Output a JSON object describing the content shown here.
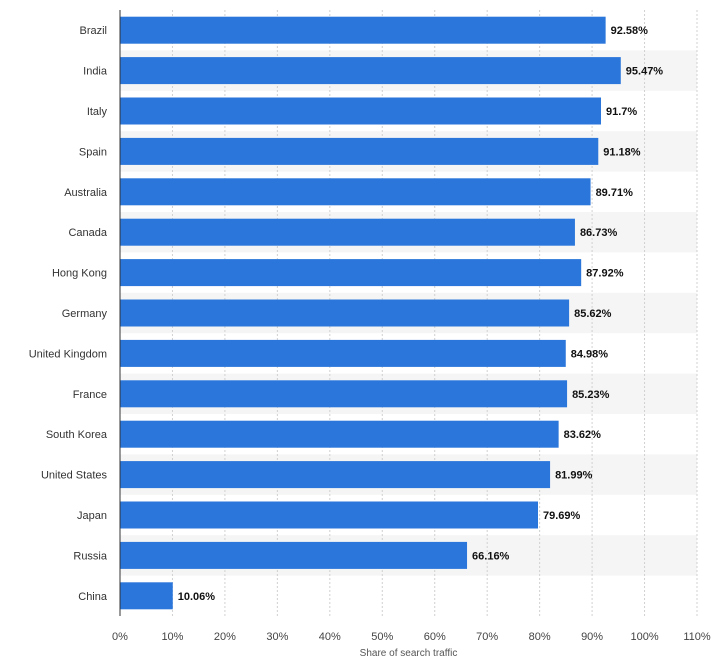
{
  "chart_data": {
    "type": "bar",
    "orientation": "horizontal",
    "categories": [
      "Brazil",
      "India",
      "Italy",
      "Spain",
      "Australia",
      "Canada",
      "Hong Kong",
      "Germany",
      "United Kingdom",
      "France",
      "South Korea",
      "United States",
      "Japan",
      "Russia",
      "China"
    ],
    "values": [
      92.58,
      95.47,
      91.7,
      91.18,
      89.71,
      86.73,
      87.92,
      85.62,
      84.98,
      85.23,
      83.62,
      81.99,
      79.69,
      66.16,
      10.06
    ],
    "value_labels": [
      "92.58%",
      "95.47%",
      "91.7%",
      "91.18%",
      "89.71%",
      "86.73%",
      "87.92%",
      "85.62%",
      "84.98%",
      "85.23%",
      "83.62%",
      "81.99%",
      "79.69%",
      "66.16%",
      "10.06%"
    ],
    "xlabel": "Share of search traffic",
    "ylabel": "",
    "xlim": [
      0,
      110
    ],
    "x_ticks": [
      0,
      10,
      20,
      30,
      40,
      50,
      60,
      70,
      80,
      90,
      100,
      110
    ],
    "x_tick_labels": [
      "0%",
      "10%",
      "20%",
      "30%",
      "40%",
      "50%",
      "60%",
      "70%",
      "80%",
      "90%",
      "100%",
      "110%"
    ],
    "grid": "vertical dashed",
    "alternating_row_bands": true,
    "legend": "none",
    "colors": {
      "bar": "#2a76db",
      "band": "#f5f5f5",
      "grid": "#d0d0d0",
      "axis": "#333333"
    }
  }
}
